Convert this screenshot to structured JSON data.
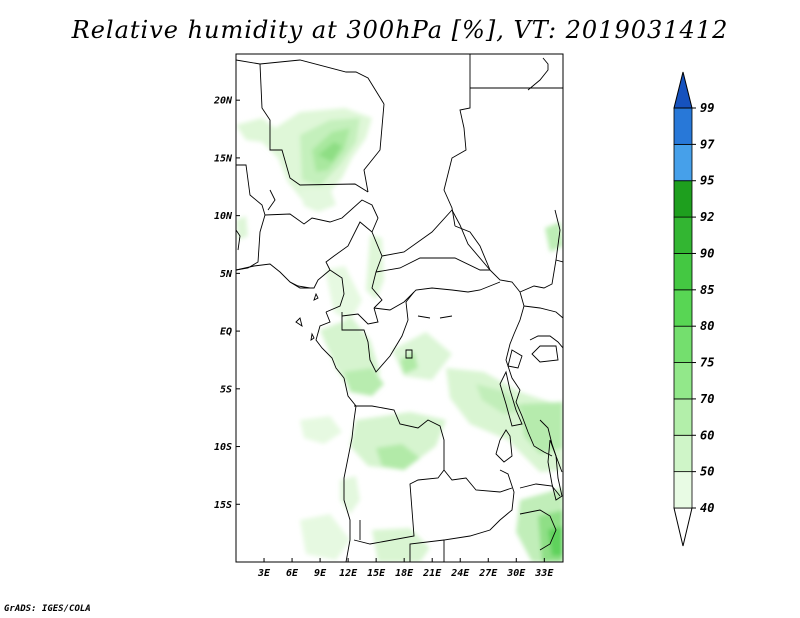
{
  "title": "Relative humidity at 300hPa [%], VT: 2019031412",
  "credit": "GrADS: IGES/COLA",
  "map": {
    "lon_range_deg_e": [
      0,
      35
    ],
    "lat_range_deg_n": [
      -20,
      24
    ],
    "lat_ticks": [
      "20N",
      "15N",
      "10N",
      "5N",
      "EQ",
      "5S",
      "10S",
      "15S"
    ],
    "lon_ticks": [
      "3E",
      "6E",
      "9E",
      "12E",
      "15E",
      "18E",
      "21E",
      "24E",
      "27E",
      "30E",
      "33E"
    ]
  },
  "colorbar": {
    "levels": [
      "40",
      "50",
      "60",
      "70",
      "75",
      "80",
      "85",
      "90",
      "92",
      "95",
      "97",
      "99"
    ],
    "colors": [
      "#e8fbe4",
      "#cff5c8",
      "#b3efaa",
      "#92e88a",
      "#74df6e",
      "#58d654",
      "#44c842",
      "#33b632",
      "#1e9f1e",
      "#46a0ea",
      "#2878d8",
      "#1652be"
    ]
  },
  "colors": {
    "land_border": "#000000",
    "background": "#ffffff"
  }
}
